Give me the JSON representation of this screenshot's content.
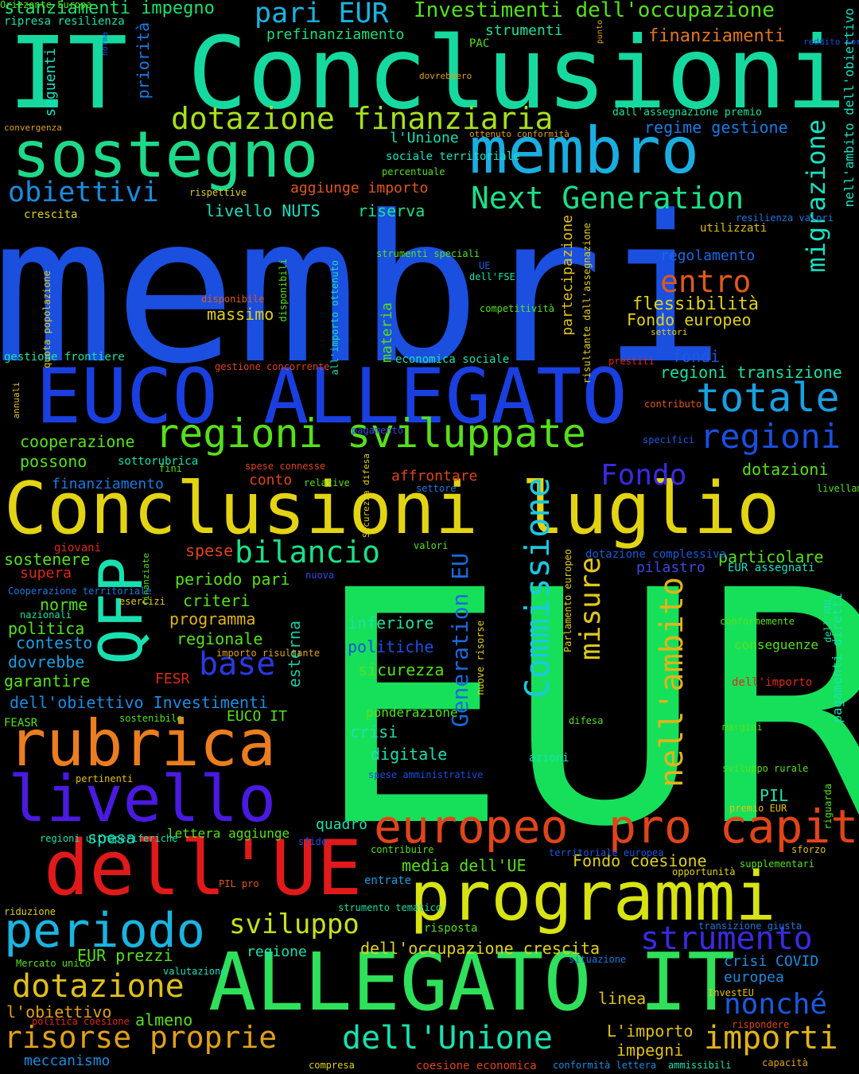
{
  "words": [
    {
      "text": "membri",
      "color": "#1a4fe0"
    },
    {
      "text": "EUR",
      "color": "#16e05a"
    },
    {
      "text": "IT Conclusioni",
      "color": "#16d9a0"
    },
    {
      "text": "EUCO ALLEGATO",
      "color": "#1a3fe0"
    },
    {
      "text": "Conclusioni luglio",
      "color": "#e3d413"
    },
    {
      "text": "ALLEGATO IT",
      "color": "#2fe05a"
    },
    {
      "text": "programmi",
      "color": "#d8e313"
    },
    {
      "text": "sostegno",
      "color": "#1ed98a"
    },
    {
      "text": "membro",
      "color": "#1aaee0"
    },
    {
      "text": "rubrica",
      "color": "#ea7d1f"
    },
    {
      "text": "livello",
      "color": "#4a1ae0"
    },
    {
      "text": "dell'UE",
      "color": "#e01a1a"
    },
    {
      "text": "europeo",
      "color": "#e0441a"
    },
    {
      "text": "pro capite",
      "color": "#e0441a"
    },
    {
      "text": "periodo",
      "color": "#1ab4e0"
    },
    {
      "text": "regioni sviluppate",
      "color": "#56e01a"
    },
    {
      "text": "QFP",
      "color": "#1ae0b0"
    },
    {
      "text": "totale",
      "color": "#1a9fe0"
    },
    {
      "text": "regioni",
      "color": "#1a4fe0"
    },
    {
      "text": "dotazione finanziaria",
      "color": "#a8e01a"
    },
    {
      "text": "Next Generation",
      "color": "#1ae08a"
    },
    {
      "text": "Commissione",
      "color": "#1ac8e0"
    },
    {
      "text": "bilancio",
      "color": "#1ae08a"
    },
    {
      "text": "obiettivi",
      "color": "#1a8ce0"
    },
    {
      "text": "migrazione",
      "color": "#1ae0c0"
    },
    {
      "text": "nell'ambito",
      "color": "#e0b41a"
    },
    {
      "text": "Generation EU",
      "color": "#1a6ae0"
    },
    {
      "text": "misure",
      "color": "#e0c81a"
    },
    {
      "text": "base",
      "color": "#2a3ae0"
    },
    {
      "text": "entro",
      "color": "#e0581a"
    },
    {
      "text": "Fondo",
      "color": "#3a2ae0"
    },
    {
      "text": "pari EUR",
      "color": "#1ab4e0"
    },
    {
      "text": "dotazione",
      "color": "#e0c01a"
    },
    {
      "text": "risorse proprie",
      "color": "#e0a01a"
    },
    {
      "text": "dell'Unione",
      "color": "#1ae0b0"
    },
    {
      "text": "importi",
      "color": "#e0b41a"
    },
    {
      "text": "strumento",
      "color": "#3a2ae0"
    },
    {
      "text": "nonché",
      "color": "#1a5ae0"
    },
    {
      "text": "sviluppo",
      "color": "#c8e01a"
    },
    {
      "text": "Investimenti dell'occupazione",
      "color": "#56e01a"
    },
    {
      "text": "stanziamenti impegno",
      "color": "#1ae06a"
    },
    {
      "text": "finanziamenti",
      "color": "#e0781a"
    },
    {
      "text": "prefinanziamento",
      "color": "#1ae07a"
    },
    {
      "text": "strumenti",
      "color": "#1ae0a0"
    },
    {
      "text": "ripresa resilienza",
      "color": "#1ae0b0"
    },
    {
      "text": "regime gestione",
      "color": "#1a7ae0"
    },
    {
      "text": "l'Unione",
      "color": "#1ae0b0"
    },
    {
      "text": "aggiunge importo",
      "color": "#e0581a"
    },
    {
      "text": "livello NUTS",
      "color": "#1ae0c0"
    },
    {
      "text": "riserva",
      "color": "#1ae08a"
    },
    {
      "text": "regolamento",
      "color": "#1a6ae0"
    },
    {
      "text": "flessibilità",
      "color": "#e0d01a"
    },
    {
      "text": "Fondo europeo",
      "color": "#e0d01a"
    },
    {
      "text": "massimo",
      "color": "#e0d01a"
    },
    {
      "text": "fondi",
      "color": "#1a5ae0"
    },
    {
      "text": "regioni transizione",
      "color": "#1ae0a0"
    },
    {
      "text": "gestione frontiere",
      "color": "#1ae0a0"
    },
    {
      "text": "cooperazione",
      "color": "#56e01a"
    },
    {
      "text": "possono",
      "color": "#56e01a"
    },
    {
      "text": "finanziamento",
      "color": "#1a7ae0"
    },
    {
      "text": "conto",
      "color": "#e0441a"
    },
    {
      "text": "affrontare",
      "color": "#e0441a"
    },
    {
      "text": "dotazioni",
      "color": "#56e01a"
    },
    {
      "text": "particolare",
      "color": "#56e01a"
    },
    {
      "text": "pilastro",
      "color": "#3a4ae0"
    },
    {
      "text": "EUR assegnati",
      "color": "#1ae0c0"
    },
    {
      "text": "sostenere",
      "color": "#56e01a"
    },
    {
      "text": "supera",
      "color": "#e0281a"
    },
    {
      "text": "spese",
      "color": "#e0441a"
    },
    {
      "text": "periodo pari",
      "color": "#56e01a"
    },
    {
      "text": "criteri",
      "color": "#56e01a"
    },
    {
      "text": "programma",
      "color": "#e0b41a"
    },
    {
      "text": "regionale",
      "color": "#56e01a"
    },
    {
      "text": "norme",
      "color": "#56e01a"
    },
    {
      "text": "politica",
      "color": "#56e01a"
    },
    {
      "text": "contesto",
      "color": "#1a9fe0"
    },
    {
      "text": "dovrebbe",
      "color": "#1a9fe0"
    },
    {
      "text": "garantire",
      "color": "#56e01a"
    },
    {
      "text": "FESR",
      "color": "#e0281a"
    },
    {
      "text": "dell'obiettivo Investimenti",
      "color": "#1a8ce0"
    },
    {
      "text": "EUCO IT",
      "color": "#56e01a"
    },
    {
      "text": "inferiore",
      "color": "#1ae0a0"
    },
    {
      "text": "politiche",
      "color": "#1a4fe0"
    },
    {
      "text": "sicurezza",
      "color": "#56e01a"
    },
    {
      "text": "esterna",
      "color": "#1ac8a0"
    },
    {
      "text": "crisi",
      "color": "#1ae0b0"
    },
    {
      "text": "digitale",
      "color": "#1ae0b0"
    },
    {
      "text": "ponderazione",
      "color": "#56e01a"
    },
    {
      "text": "quadro",
      "color": "#1ae0b0"
    },
    {
      "text": "spesa",
      "color": "#1ae0c0"
    },
    {
      "text": "lettera aggiunge",
      "color": "#56e01a"
    },
    {
      "text": "media dell'UE",
      "color": "#56e01a"
    },
    {
      "text": "Fondo coesione",
      "color": "#e0d01a"
    },
    {
      "text": "PIL",
      "color": "#1ae0b0"
    },
    {
      "text": "dell'occupazione crescita",
      "color": "#e0d01a"
    },
    {
      "text": "EUR prezzi",
      "color": "#56e01a"
    },
    {
      "text": "regione",
      "color": "#1ae0b0"
    },
    {
      "text": "crisi COVID",
      "color": "#1a8ce0"
    },
    {
      "text": "europea",
      "color": "#1a8ce0"
    },
    {
      "text": "linea",
      "color": "#e0c01a"
    },
    {
      "text": "almeno",
      "color": "#56e01a"
    },
    {
      "text": "l'obiettivo",
      "color": "#e0a01a"
    },
    {
      "text": "L'importo",
      "color": "#e0c01a"
    },
    {
      "text": "impegni",
      "color": "#e0c01a"
    },
    {
      "text": "meccanismo",
      "color": "#1a8ce0"
    },
    {
      "text": "pagamenti diretti",
      "color": "#1ae0b0"
    },
    {
      "text": "nell'ambito dell'obiettivo",
      "color": "#1ae0c0"
    },
    {
      "text": "partecipazione",
      "color": "#e0c01a"
    },
    {
      "text": "materia",
      "color": "#56e01a"
    },
    {
      "text": "economica sociale",
      "color": "#1ae0b0"
    },
    {
      "text": "seguenti",
      "color": "#1ae0c0"
    },
    {
      "text": "priorità",
      "color": "#1a7ae0"
    },
    {
      "text": "dovrebbero",
      "color": "#e0a01a"
    },
    {
      "text": "PAC",
      "color": "#56e01a"
    },
    {
      "text": "reddito lordo",
      "color": "#1a4fe0"
    },
    {
      "text": "norma",
      "color": "#1a4fe0"
    },
    {
      "text": "convergenza",
      "color": "#e0a01a"
    },
    {
      "text": "dall'assegnazione premio",
      "color": "#1ae0a0"
    },
    {
      "text": "ottenuto conformità",
      "color": "#e0a01a"
    },
    {
      "text": "sociale territoriale",
      "color": "#1ae0c0"
    },
    {
      "text": "percentuale",
      "color": "#56e01a"
    },
    {
      "text": "rispettive",
      "color": "#e0d01a"
    },
    {
      "text": "crescita",
      "color": "#e0d01a"
    },
    {
      "text": "resilienza valori",
      "color": "#1a7ae0"
    },
    {
      "text": "utilizzati",
      "color": "#e0c01a"
    },
    {
      "text": "punto",
      "color": "#e0a01a"
    },
    {
      "text": "strumenti speciali",
      "color": "#56e01a"
    },
    {
      "text": "UE",
      "color": "#1a5ae0"
    },
    {
      "text": "dell'FSE",
      "color": "#1ae0b0"
    },
    {
      "text": "disponibile",
      "color": "#e0581a"
    },
    {
      "text": "competitività",
      "color": "#56e01a"
    },
    {
      "text": "settori",
      "color": "#e0d01a"
    },
    {
      "text": "quota popolazione",
      "color": "#e0d01a"
    },
    {
      "text": "disponibili",
      "color": "#56e01a"
    },
    {
      "text": "all'importo ottenuto",
      "color": "#1ae0b0"
    },
    {
      "text": "risultante dall'assegnazione",
      "color": "#e0d01a"
    },
    {
      "text": "gestione concorrente",
      "color": "#e0441a"
    },
    {
      "text": "prestiti",
      "color": "#e0281a"
    },
    {
      "text": "contributo",
      "color": "#e0581a"
    },
    {
      "text": "specifici",
      "color": "#1a5ae0"
    },
    {
      "text": "annuali",
      "color": "#e0c01a"
    },
    {
      "text": "pagamento",
      "color": "#3a4ae0"
    },
    {
      "text": "sottorubrica",
      "color": "#1ae0b0"
    },
    {
      "text": "fini",
      "color": "#56e01a"
    },
    {
      "text": "spese connesse",
      "color": "#e0441a"
    },
    {
      "text": "Sicurezza difesa",
      "color": "#e0d01a"
    },
    {
      "text": "relative",
      "color": "#56e01a"
    },
    {
      "text": "settore",
      "color": "#1a7ae0"
    },
    {
      "text": "livellamento",
      "color": "#56e01a"
    },
    {
      "text": "giovani",
      "color": "#e0281a"
    },
    {
      "text": "valori",
      "color": "#56e01a"
    },
    {
      "text": "dotazione complessiva",
      "color": "#1a5ae0"
    },
    {
      "text": "finanziate",
      "color": "#56e01a"
    },
    {
      "text": "nuova",
      "color": "#3a4ae0"
    },
    {
      "text": "Cooperazione territoriale",
      "color": "#1a7ae0"
    },
    {
      "text": "esercizi",
      "color": "#e0d01a"
    },
    {
      "text": "nazionali",
      "color": "#1ae0a0"
    },
    {
      "text": "nuove risorse",
      "color": "#e0d01a"
    },
    {
      "text": "Parlamento europeo",
      "color": "#e0d01a"
    },
    {
      "text": "conformemente",
      "color": "#56e01a"
    },
    {
      "text": "conseguenze",
      "color": "#56e01a"
    },
    {
      "text": "dell'RNL",
      "color": "#1ae0b0"
    },
    {
      "text": "importo risultante",
      "color": "#e0a01a"
    },
    {
      "text": "dell'importo",
      "color": "#e0281a"
    },
    {
      "text": "FEASR",
      "color": "#56e01a"
    },
    {
      "text": "sostenibile",
      "color": "#56e01a"
    },
    {
      "text": "difesa",
      "color": "#56e01a"
    },
    {
      "text": "margini",
      "color": "#56e01a"
    },
    {
      "text": "azioni",
      "color": "#1ae0b0"
    },
    {
      "text": "pertinenti",
      "color": "#e0c01a"
    },
    {
      "text": "spese amministrative",
      "color": "#1a4fe0"
    },
    {
      "text": "sviluppo rurale",
      "color": "#56e01a"
    },
    {
      "text": "premio EUR",
      "color": "#e0c01a"
    },
    {
      "text": "riguarda",
      "color": "#56e01a"
    },
    {
      "text": "regioni ultraperiferiche",
      "color": "#1ae0b0"
    },
    {
      "text": "sfide",
      "color": "#1a4fe0"
    },
    {
      "text": "contribuire",
      "color": "#56e01a"
    },
    {
      "text": "territoriale europea",
      "color": "#1a5ae0"
    },
    {
      "text": "sforzo",
      "color": "#e0c01a"
    },
    {
      "text": "supplementari",
      "color": "#56e01a"
    },
    {
      "text": "opportunità",
      "color": "#e0d01a"
    },
    {
      "text": "entrate",
      "color": "#1a9fe0"
    },
    {
      "text": "PIL pro",
      "color": "#e0581a"
    },
    {
      "text": "riduzione",
      "color": "#e0d01a"
    },
    {
      "text": "strumento tematico",
      "color": "#1ae0a0"
    },
    {
      "text": "risposta",
      "color": "#56e01a"
    },
    {
      "text": "transizione giusta",
      "color": "#1a7ae0"
    },
    {
      "text": "Mercato unico",
      "color": "#56e01a"
    },
    {
      "text": "situazione",
      "color": "#1a7ae0"
    },
    {
      "text": "valutazione",
      "color": "#1ae0c0"
    },
    {
      "text": "InvestEU",
      "color": "#e0c01a"
    },
    {
      "text": "politica coesione",
      "color": "#e0281a"
    },
    {
      "text": "rispondere",
      "color": "#e0441a"
    },
    {
      "text": "compresa",
      "color": "#e0d01a"
    },
    {
      "text": "coesione economica",
      "color": "#e0441a"
    },
    {
      "text": "conformità lettera",
      "color": "#1a8ce0"
    },
    {
      "text": "ammissibili",
      "color": "#1ae0b0"
    },
    {
      "text": "capacità",
      "color": "#e0a01a"
    },
    {
      "text": "Orizzonte Europa",
      "color": "#56e01a"
    }
  ]
}
